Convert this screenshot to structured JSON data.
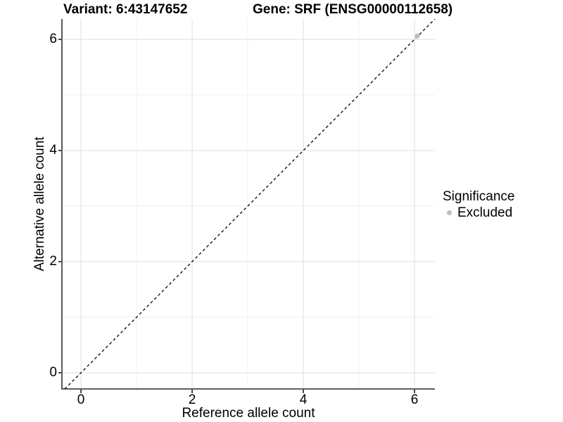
{
  "chart_data": {
    "type": "scatter",
    "title_left": "Variant: 6:43147652",
    "title_right": "Gene: SRF (ENSG00000112658)",
    "xlabel": "Reference allele count",
    "ylabel": "Alternative allele count",
    "xlim": [
      -0.342,
      6.367
    ],
    "ylim": [
      -0.291,
      6.367
    ],
    "x_major_ticks": [
      0,
      2,
      4,
      6
    ],
    "y_major_ticks": [
      0,
      2,
      4,
      6
    ],
    "x_minor_ticks": [
      1,
      3,
      5
    ],
    "y_minor_ticks": [
      1,
      3,
      5
    ],
    "grid": "major+minor",
    "points": [
      {
        "x": 6.05,
        "y": 6.06,
        "group": "Excluded"
      }
    ],
    "identity_line": {
      "slope": 1,
      "intercept": 0,
      "style": "dashed",
      "color": "#000000"
    },
    "legend": {
      "title": "Significance",
      "position": "right",
      "entries": [
        {
          "label": "Excluded",
          "color": "#bebebe",
          "marker": "circle"
        }
      ]
    },
    "colors": {
      "background": "#ffffff",
      "grid_major": "#e4e4e4",
      "grid_minor": "#f0f0f0",
      "axis_line": "#474747",
      "tick": "#333333",
      "point": "#bebebe",
      "text": "#000000"
    }
  }
}
